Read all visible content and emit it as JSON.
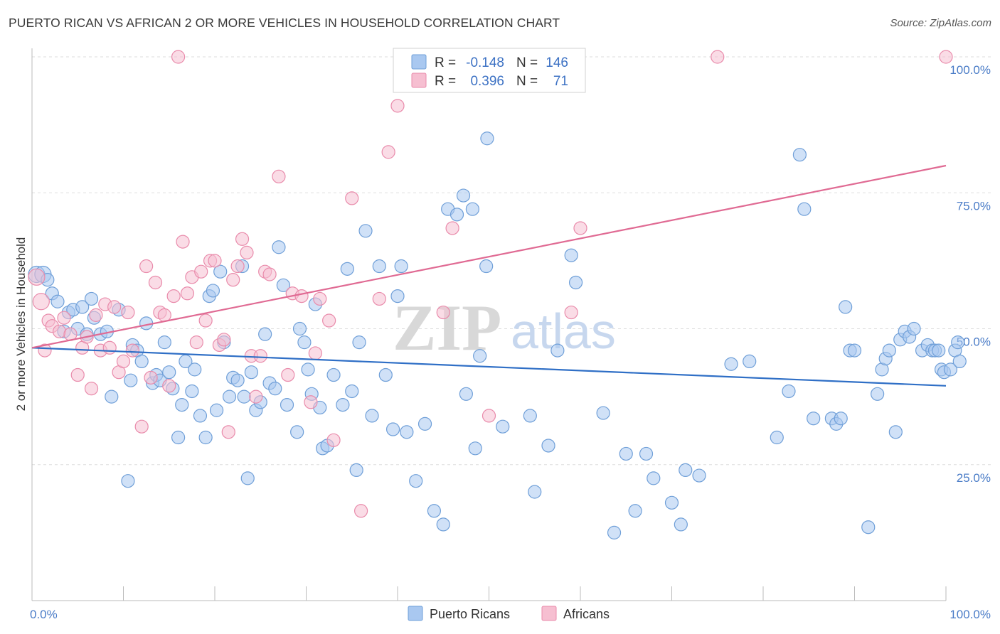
{
  "title": "PUERTO RICAN VS AFRICAN 2 OR MORE VEHICLES IN HOUSEHOLD CORRELATION CHART",
  "source": "Source: ZipAtlas.com",
  "watermark": {
    "zip": "ZIP",
    "atlas": "atlas"
  },
  "colors": {
    "blue_fill": "#a9c8f0",
    "blue_stroke": "#6f9fd8",
    "blue_line": "#2f6fc6",
    "pink_fill": "#f6bfd1",
    "pink_stroke": "#e98bab",
    "pink_line": "#e06a93",
    "axis_label": "#4a7cc7",
    "grid": "#dddddd"
  },
  "legend": {
    "rows": [
      {
        "r_label": "R =",
        "r_value": "-0.148",
        "n_label": "N =",
        "n_value": "146"
      },
      {
        "r_label": "R =",
        "r_value": "0.396",
        "n_label": "N =",
        "n_value": "71"
      }
    ]
  },
  "bottom_legend": [
    "Puerto Ricans",
    "Africans"
  ],
  "chart_data": {
    "type": "scatter",
    "title": "PUERTO RICAN VS AFRICAN 2 OR MORE VEHICLES IN HOUSEHOLD CORRELATION CHART",
    "xlabel": "",
    "ylabel": "2 or more Vehicles in Household",
    "xlim": [
      0,
      100
    ],
    "ylim": [
      0,
      100
    ],
    "x_tick_labels": [
      "0.0%",
      "100.0%"
    ],
    "y_tick_labels": [
      "25.0%",
      "50.0%",
      "75.0%",
      "100.0%"
    ],
    "y_ticks": [
      25,
      50,
      75,
      100
    ],
    "grid": true,
    "legend_position": "top-center",
    "series": [
      {
        "name": "Puerto Ricans",
        "r": -0.148,
        "n": 146,
        "trend": {
          "x": [
            0,
            100
          ],
          "y": [
            46.5,
            39.5
          ]
        },
        "points": [
          [
            0.5,
            60
          ],
          [
            1.2,
            60
          ],
          [
            1.7,
            59
          ],
          [
            2.2,
            56.5
          ],
          [
            2.8,
            55
          ],
          [
            3.5,
            49.5
          ],
          [
            4,
            53
          ],
          [
            4.5,
            53.5
          ],
          [
            5,
            50
          ],
          [
            5.5,
            54
          ],
          [
            6,
            49
          ],
          [
            6.5,
            55.5
          ],
          [
            6.8,
            52
          ],
          [
            7.5,
            49
          ],
          [
            8.2,
            49.5
          ],
          [
            8.7,
            37.5
          ],
          [
            9.5,
            53.5
          ],
          [
            10.5,
            22
          ],
          [
            10.8,
            40.5
          ],
          [
            11,
            47
          ],
          [
            11.5,
            46
          ],
          [
            12,
            44
          ],
          [
            12.5,
            51
          ],
          [
            13.2,
            40
          ],
          [
            13.6,
            41.5
          ],
          [
            14,
            40.5
          ],
          [
            14.5,
            47.5
          ],
          [
            15,
            42
          ],
          [
            15.4,
            39
          ],
          [
            16,
            30
          ],
          [
            16.4,
            36
          ],
          [
            16.8,
            44
          ],
          [
            17.5,
            38.5
          ],
          [
            17.8,
            42.5
          ],
          [
            18.4,
            34
          ],
          [
            19,
            30
          ],
          [
            19.4,
            56
          ],
          [
            19.8,
            57
          ],
          [
            20.2,
            35
          ],
          [
            20.6,
            60.5
          ],
          [
            21,
            47.5
          ],
          [
            21.6,
            37.5
          ],
          [
            22,
            41
          ],
          [
            22.5,
            40.5
          ],
          [
            23,
            61.5
          ],
          [
            23.2,
            37.5
          ],
          [
            23.6,
            22.5
          ],
          [
            24,
            42
          ],
          [
            24.5,
            35
          ],
          [
            25,
            36.5
          ],
          [
            25.5,
            49
          ],
          [
            26,
            40
          ],
          [
            26.6,
            39
          ],
          [
            27,
            65
          ],
          [
            27.5,
            58
          ],
          [
            27.9,
            36
          ],
          [
            29,
            31
          ],
          [
            29.3,
            50
          ],
          [
            29.8,
            47.5
          ],
          [
            30.2,
            42.5
          ],
          [
            30.6,
            38
          ],
          [
            31,
            54.5
          ],
          [
            31.5,
            35.5
          ],
          [
            31.8,
            28
          ],
          [
            32.3,
            28.5
          ],
          [
            33,
            41.5
          ],
          [
            34,
            36
          ],
          [
            34.5,
            61
          ],
          [
            35,
            38.5
          ],
          [
            35.5,
            24
          ],
          [
            35.8,
            47.5
          ],
          [
            36.5,
            68
          ],
          [
            37.2,
            34
          ],
          [
            38,
            61.5
          ],
          [
            38.7,
            41.5
          ],
          [
            39.5,
            31.5
          ],
          [
            40,
            56
          ],
          [
            40.4,
            61.5
          ],
          [
            41,
            31
          ],
          [
            42,
            22
          ],
          [
            43,
            32.5
          ],
          [
            44,
            16.5
          ],
          [
            45,
            14
          ],
          [
            45.5,
            72
          ],
          [
            46.5,
            71
          ],
          [
            47.2,
            74.5
          ],
          [
            47.5,
            38
          ],
          [
            48.2,
            72
          ],
          [
            48.5,
            28
          ],
          [
            49,
            45
          ],
          [
            49.7,
            61.5
          ],
          [
            49.8,
            85
          ],
          [
            51.5,
            32
          ],
          [
            54.5,
            34
          ],
          [
            55,
            20
          ],
          [
            56.5,
            28.5
          ],
          [
            57.5,
            46
          ],
          [
            59,
            63.5
          ],
          [
            59.5,
            58.5
          ],
          [
            62.5,
            34.5
          ],
          [
            63.7,
            12.5
          ],
          [
            65,
            27
          ],
          [
            66,
            16.5
          ],
          [
            67.2,
            27
          ],
          [
            68,
            22.5
          ],
          [
            70,
            18
          ],
          [
            71,
            14
          ],
          [
            71.5,
            24
          ],
          [
            73,
            23
          ],
          [
            76.5,
            43.5
          ],
          [
            78.5,
            44
          ],
          [
            81.5,
            30
          ],
          [
            82.8,
            38.5
          ],
          [
            84,
            82
          ],
          [
            84.5,
            72
          ],
          [
            85.5,
            33.5
          ],
          [
            87.5,
            33.5
          ],
          [
            88,
            32.5
          ],
          [
            88.5,
            33.5
          ],
          [
            89,
            54
          ],
          [
            89.5,
            46
          ],
          [
            90,
            46
          ],
          [
            91.5,
            13.5
          ],
          [
            92.5,
            38
          ],
          [
            93,
            42.5
          ],
          [
            93.4,
            44.5
          ],
          [
            93.8,
            46
          ],
          [
            94.5,
            31
          ],
          [
            95,
            48
          ],
          [
            95.5,
            49.5
          ],
          [
            96,
            48.5
          ],
          [
            96.5,
            50
          ],
          [
            97.4,
            46
          ],
          [
            98,
            47
          ],
          [
            98.5,
            46
          ],
          [
            98.8,
            46
          ],
          [
            99.2,
            46
          ],
          [
            99.5,
            42.5
          ],
          [
            99.8,
            42
          ],
          [
            100.5,
            42.5
          ],
          [
            101,
            46
          ],
          [
            101.3,
            47.5
          ],
          [
            101.5,
            44
          ]
        ]
      },
      {
        "name": "Africans",
        "r": 0.396,
        "n": 71,
        "trend": {
          "x": [
            0,
            100
          ],
          "y": [
            46.5,
            80
          ]
        },
        "points": [
          [
            0.5,
            59.5
          ],
          [
            1,
            55
          ],
          [
            1.4,
            46
          ],
          [
            1.8,
            51.5
          ],
          [
            2.2,
            50.5
          ],
          [
            3,
            49.5
          ],
          [
            3.5,
            52
          ],
          [
            4.2,
            49
          ],
          [
            5,
            41.5
          ],
          [
            5.5,
            46.5
          ],
          [
            6,
            48.5
          ],
          [
            6.5,
            39
          ],
          [
            7,
            52.5
          ],
          [
            7.5,
            46
          ],
          [
            8,
            54.5
          ],
          [
            8.5,
            46.5
          ],
          [
            9,
            54
          ],
          [
            9.5,
            42
          ],
          [
            10,
            44
          ],
          [
            10.5,
            53
          ],
          [
            11,
            46
          ],
          [
            12,
            32
          ],
          [
            12.5,
            61.5
          ],
          [
            13,
            41
          ],
          [
            13.5,
            58.5
          ],
          [
            14,
            53
          ],
          [
            14.5,
            52.5
          ],
          [
            15,
            39.5
          ],
          [
            15.5,
            56
          ],
          [
            16,
            100
          ],
          [
            16.5,
            66
          ],
          [
            17,
            56.5
          ],
          [
            17.5,
            59.5
          ],
          [
            18,
            47.5
          ],
          [
            18.5,
            60.5
          ],
          [
            19,
            51.5
          ],
          [
            19.5,
            62.5
          ],
          [
            20,
            62.5
          ],
          [
            20.5,
            47
          ],
          [
            21,
            48
          ],
          [
            21.5,
            31
          ],
          [
            22,
            59
          ],
          [
            22.5,
            61.5
          ],
          [
            23,
            66.5
          ],
          [
            23.5,
            64
          ],
          [
            24,
            45
          ],
          [
            24.5,
            37.5
          ],
          [
            25,
            45
          ],
          [
            25.5,
            60.5
          ],
          [
            26,
            60
          ],
          [
            27,
            78
          ],
          [
            28,
            41.5
          ],
          [
            28.5,
            56.5
          ],
          [
            29.5,
            56
          ],
          [
            30.5,
            36.5
          ],
          [
            31,
            45.5
          ],
          [
            31.5,
            55.5
          ],
          [
            32.5,
            51.5
          ],
          [
            33,
            29.5
          ],
          [
            35,
            74
          ],
          [
            36,
            16.5
          ],
          [
            38,
            55.5
          ],
          [
            39,
            82.5
          ],
          [
            40,
            91
          ],
          [
            45,
            53
          ],
          [
            46,
            68.5
          ],
          [
            50,
            34
          ],
          [
            59,
            53
          ],
          [
            60,
            68.5
          ],
          [
            75,
            100
          ],
          [
            100,
            100
          ]
        ]
      }
    ]
  }
}
